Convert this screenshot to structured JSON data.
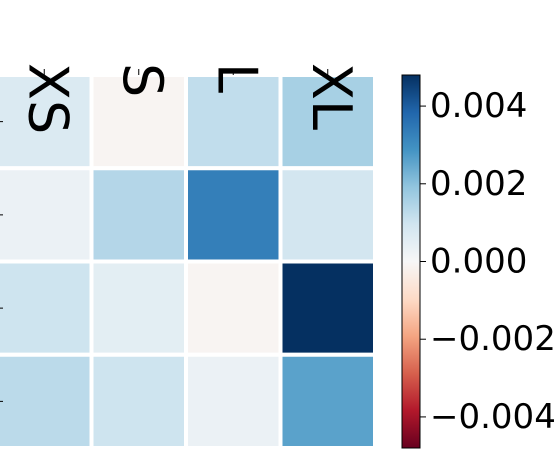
{
  "chart_data": {
    "type": "heatmap",
    "x_categories": [
      "XS",
      "S",
      "L",
      "XL"
    ],
    "y_categories": [
      "",
      "",
      "",
      ""
    ],
    "values": [
      [
        0.0007,
        -0.0001,
        0.0012,
        0.0016
      ],
      [
        0.0003,
        0.0014,
        0.0033,
        0.0009
      ],
      [
        0.001,
        0.0005,
        -0.0001,
        0.005
      ],
      [
        0.0013,
        0.001,
        0.0003,
        0.0026
      ]
    ],
    "colormap": "RdBu",
    "vmin": -0.0048,
    "vmax": 0.0048,
    "colorbar": {
      "ticks": [
        0.004,
        0.002,
        0.0,
        -0.002,
        -0.004
      ],
      "tick_labels": [
        "0.004",
        "0.002",
        "0.000",
        "−0.002",
        "−0.004"
      ]
    },
    "grid_color": "#ffffff",
    "xlabel": "",
    "ylabel": "",
    "title": ""
  }
}
